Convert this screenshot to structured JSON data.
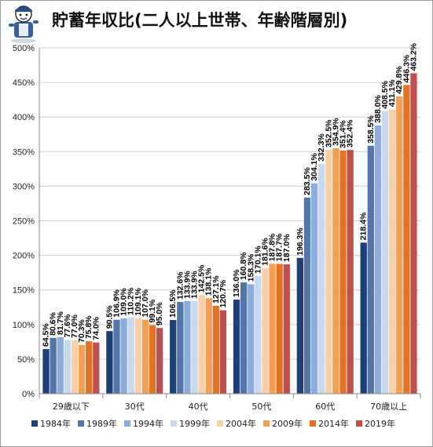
{
  "title": "貯蓄年収比(二人以上世帯、年齢階層別)",
  "chart_data": {
    "type": "bar",
    "title": "貯蓄年収比(二人以上世帯、年齢階層別)",
    "xlabel": "",
    "ylabel": "",
    "ylim": [
      0,
      500
    ],
    "yticks": [
      "0%",
      "50%",
      "100%",
      "150%",
      "200%",
      "250%",
      "300%",
      "350%",
      "400%",
      "450%",
      "500%"
    ],
    "grid": true,
    "legend_position": "bottom",
    "categories": [
      "29歳以下",
      "30代",
      "40代",
      "50代",
      "60代",
      "70歳以上"
    ],
    "series": [
      {
        "name": "1984年",
        "color": "#1f3f77",
        "values": [
          64.5,
          90.5,
          106.5,
          136.0,
          196.3,
          218.4
        ]
      },
      {
        "name": "1989年",
        "color": "#5276a8",
        "values": [
          80.6,
          106.9,
          132.6,
          160.8,
          283.5,
          358.5
        ]
      },
      {
        "name": "1994年",
        "color": "#8aaed9",
        "values": [
          81.7,
          109.0,
          133.9,
          158.3,
          304.1,
          388.0
        ]
      },
      {
        "name": "1999年",
        "color": "#c7d9ee",
        "values": [
          77.6,
          110.2,
          133.9,
          170.1,
          332.3,
          408.5
        ]
      },
      {
        "name": "2004年",
        "color": "#f8cfa8",
        "values": [
          77.0,
          109.1,
          142.5,
          181.6,
          352.5,
          411.1
        ]
      },
      {
        "name": "2009年",
        "color": "#f2a054",
        "values": [
          70.3,
          107.0,
          138.1,
          187.8,
          354.9,
          429.8
        ]
      },
      {
        "name": "2014年",
        "color": "#e47224",
        "values": [
          75.8,
          99.1,
          127.1,
          187.7,
          351.4,
          446.3
        ]
      },
      {
        "name": "2019年",
        "color": "#c0504d",
        "values": [
          74.0,
          95.0,
          120.7,
          187.0,
          352.4,
          463.2
        ]
      }
    ],
    "data_labels": [
      [
        "64.5%",
        "80.6%",
        "81.7%",
        "77.6%",
        "77.0%",
        "70.3%",
        "75.8%",
        "74.0%"
      ],
      [
        "90.5%",
        "106.9%",
        "109.0%",
        "110.2%",
        "109.1%",
        "107.0%",
        "99.1%",
        "95.0%"
      ],
      [
        "106.5%",
        "132.6%",
        "133.9%",
        "133.9%",
        "142.5%",
        "138.1%",
        "127.1%",
        "120.7%"
      ],
      [
        "136.0%",
        "160.8%",
        "158.3%",
        "170.1%",
        "181.6%",
        "187.8%",
        "187.7%",
        "187.0%"
      ],
      [
        "196.3%",
        "283.5%",
        "304.1%",
        "332.3%",
        "352.5%",
        "354.9%",
        "351.4%",
        "352.4%"
      ],
      [
        "218.4%",
        "358.5%",
        "388.0%",
        "408.5%",
        "411.1%",
        "429.8%",
        "446.3%",
        "463.2%"
      ]
    ]
  }
}
